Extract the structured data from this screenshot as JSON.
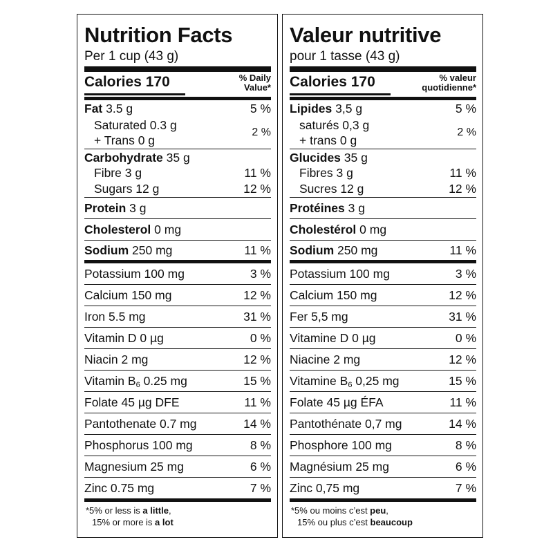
{
  "en": {
    "title": "Nutrition Facts",
    "serving": "Per 1 cup (43 g)",
    "calories_label": "Calories",
    "calories_value": "170",
    "dv_head_1": "% Daily",
    "dv_head_2": "Value*",
    "fat_label": "Fat",
    "fat_amount": "3.5 g",
    "fat_pct": "5 %",
    "saturated": "Saturated 0.3 g",
    "trans": "+ Trans 0 g",
    "sat_trans_pct": "2 %",
    "carb_label": "Carbohydrate",
    "carb_amount": "35 g",
    "fibre": "Fibre 3 g",
    "fibre_pct": "11 %",
    "sugars": "Sugars 12 g",
    "sugars_pct": "12 %",
    "protein_label": "Protein",
    "protein_amount": "3 g",
    "chol_label": "Cholesterol",
    "chol_amount": "0 mg",
    "sodium_label": "Sodium",
    "sodium_amount": "250 mg",
    "sodium_pct": "11 %",
    "vitamins": [
      {
        "name": "Potassium 100 mg",
        "pct": "3 %"
      },
      {
        "name": "Calcium 150 mg",
        "pct": "12 %"
      },
      {
        "name": "Iron 5.5 mg",
        "pct": "31 %"
      },
      {
        "name": "Vitamin D 0 µg",
        "pct": "0 %"
      },
      {
        "name": "Niacin 2 mg",
        "pct": "12 %"
      },
      {
        "name_pre": "Vitamin B",
        "name_sub": "6",
        "name_post": " 0.25 mg",
        "pct": "15 %"
      },
      {
        "name": "Folate 45 µg DFE",
        "pct": "11 %"
      },
      {
        "name": "Pantothenate 0.7 mg",
        "pct": "14 %"
      },
      {
        "name": "Phosphorus 100 mg",
        "pct": "8 %"
      },
      {
        "name": "Magnesium 25 mg",
        "pct": "6 %"
      },
      {
        "name": "Zinc 0.75 mg",
        "pct": "7 %"
      }
    ],
    "foot_1a": "*5% or less is ",
    "foot_1b": "a little",
    "foot_1c": ",",
    "foot_2a": "15% or more is ",
    "foot_2b": "a lot"
  },
  "fr": {
    "title": "Valeur nutritive",
    "serving": "pour 1 tasse (43 g)",
    "calories_label": "Calories",
    "calories_value": "170",
    "dv_head_1": "% valeur",
    "dv_head_2": "quotidienne*",
    "fat_label": "Lipides",
    "fat_amount": "3,5 g",
    "fat_pct": "5 %",
    "saturated": "saturés 0,3 g",
    "trans": "+ trans 0 g",
    "sat_trans_pct": "2 %",
    "carb_label": "Glucides",
    "carb_amount": "35 g",
    "fibre": "Fibres 3 g",
    "fibre_pct": "11 %",
    "sugars": "Sucres 12 g",
    "sugars_pct": "12 %",
    "protein_label": "Protéines",
    "protein_amount": "3 g",
    "chol_label": "Cholestérol",
    "chol_amount": "0 mg",
    "sodium_label": "Sodium",
    "sodium_amount": "250 mg",
    "sodium_pct": "11 %",
    "vitamins": [
      {
        "name": "Potassium 100 mg",
        "pct": "3 %"
      },
      {
        "name": "Calcium 150 mg",
        "pct": "12 %"
      },
      {
        "name": "Fer 5,5 mg",
        "pct": "31 %"
      },
      {
        "name": "Vitamine D 0 µg",
        "pct": "0 %"
      },
      {
        "name": "Niacine 2 mg",
        "pct": "12 %"
      },
      {
        "name_pre": "Vitamine B",
        "name_sub": "6",
        "name_post": " 0,25 mg",
        "pct": "15 %"
      },
      {
        "name": "Folate 45 µg ÉFA",
        "pct": "11 %"
      },
      {
        "name": "Pantothénate 0,7 mg",
        "pct": "14 %"
      },
      {
        "name": "Phosphore 100 mg",
        "pct": "8 %"
      },
      {
        "name": "Magnésium 25 mg",
        "pct": "6 %"
      },
      {
        "name": "Zinc 0,75 mg",
        "pct": "7 %"
      }
    ],
    "foot_1a": "*5% ou moins c’est ",
    "foot_1b": "peu",
    "foot_1c": ",",
    "foot_2a": "15% ou plus c’est ",
    "foot_2b": "beaucoup"
  }
}
